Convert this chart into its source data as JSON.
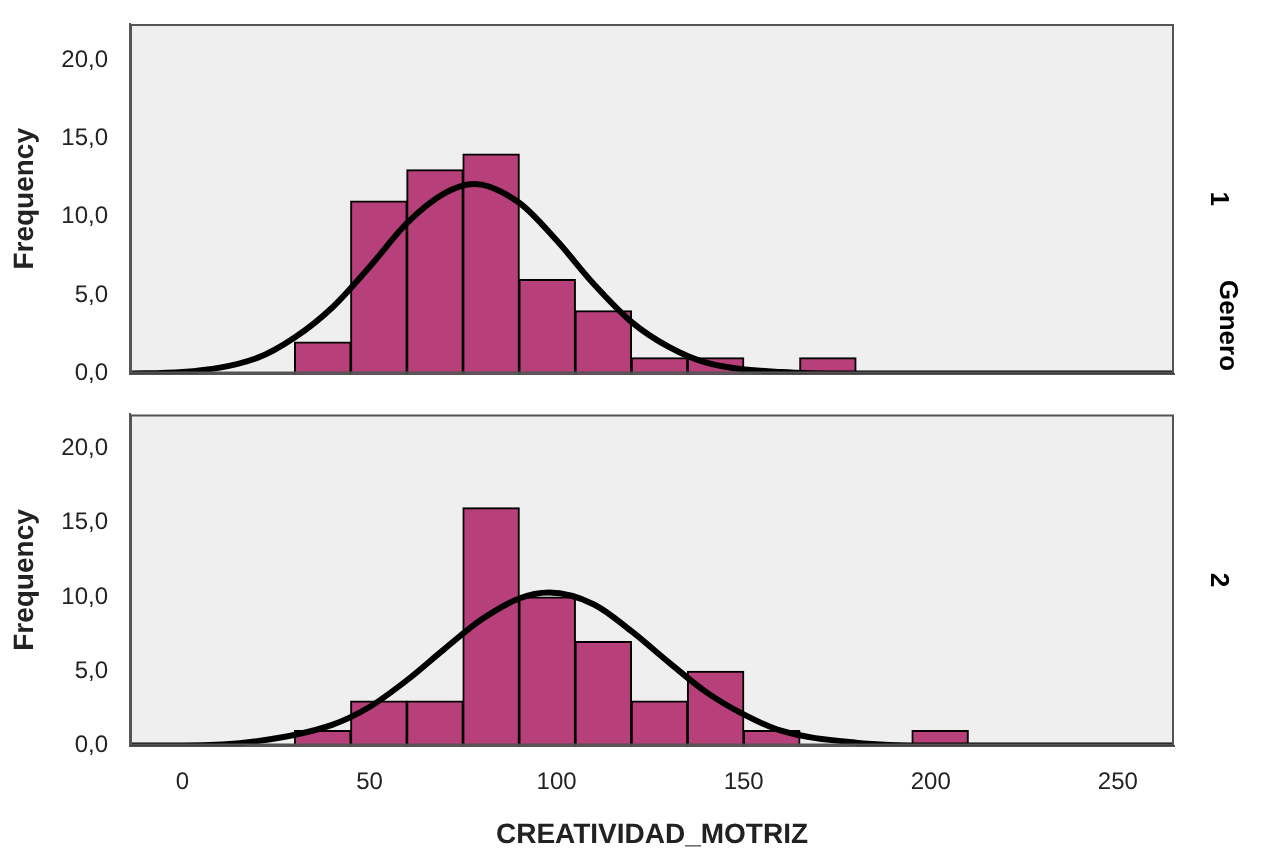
{
  "chart_data": [
    {
      "type": "histogram",
      "ylabel": "Frequency",
      "annotations": [
        "1",
        "Genero"
      ],
      "bins": [
        30,
        45,
        60,
        75,
        90,
        105,
        120,
        135,
        150,
        165,
        180
      ],
      "values": [
        2,
        11,
        13,
        14,
        6,
        4,
        1,
        1,
        0,
        1
      ],
      "color": "#b8407a",
      "series": [
        {
          "type": "line",
          "color": "#000000",
          "x": [
            -14,
            0,
            20,
            30,
            40,
            50,
            60,
            70,
            78,
            90,
            100,
            110,
            120,
            130,
            140,
            160,
            180,
            265
          ],
          "values": [
            0.0,
            0.1,
            1.0,
            2.3,
            4.2,
            6.8,
            9.6,
            11.5,
            12.1,
            10.9,
            8.5,
            5.7,
            3.3,
            1.7,
            0.7,
            0.1,
            0.0,
            0.0
          ]
        }
      ],
      "xlim": [
        -14,
        265
      ],
      "xticks": [
        0,
        50,
        100,
        150,
        200,
        250
      ],
      "ylim": [
        0,
        22.3
      ],
      "yticks": [
        {
          "value": 0,
          "label": "0,0"
        },
        {
          "value": 5,
          "label": "5,0"
        },
        {
          "value": 10,
          "label": "10,0"
        },
        {
          "value": 15,
          "label": "15,0"
        },
        {
          "value": 20,
          "label": "20,0"
        }
      ],
      "tick_labels": "y",
      "grid": false,
      "legend": false
    },
    {
      "type": "histogram",
      "xlabel": "CREATIVIDAD_MOTRIZ",
      "ylabel": "Frequency",
      "annotations": [
        "2"
      ],
      "bins": [
        30,
        45,
        60,
        75,
        90,
        105,
        120,
        135,
        150,
        165,
        180,
        195,
        210
      ],
      "values": [
        1,
        3,
        3,
        16,
        10,
        7,
        3,
        5,
        1,
        0,
        0,
        1
      ],
      "color": "#b8407a",
      "series": [
        {
          "type": "line",
          "color": "#000000",
          "x": [
            -14,
            0,
            20,
            40,
            50,
            60,
            70,
            80,
            90,
            98,
            110,
            120,
            130,
            140,
            150,
            160,
            180,
            200,
            265
          ],
          "values": [
            0.0,
            0.0,
            0.3,
            1.4,
            2.6,
            4.4,
            6.5,
            8.5,
            9.9,
            10.3,
            9.5,
            7.7,
            5.6,
            3.6,
            2.1,
            1.0,
            0.2,
            0.0,
            0.0
          ]
        }
      ],
      "xlim": [
        -14,
        265
      ],
      "xticks": [
        0,
        50,
        100,
        150,
        200,
        250
      ],
      "ylim": [
        0,
        22.3
      ],
      "yticks": [
        {
          "value": 0,
          "label": "0,0"
        },
        {
          "value": 5,
          "label": "5,0"
        },
        {
          "value": 10,
          "label": "10,0"
        },
        {
          "value": 15,
          "label": "15,0"
        },
        {
          "value": 20,
          "label": "20,0"
        }
      ],
      "grid": false,
      "legend": false
    }
  ]
}
